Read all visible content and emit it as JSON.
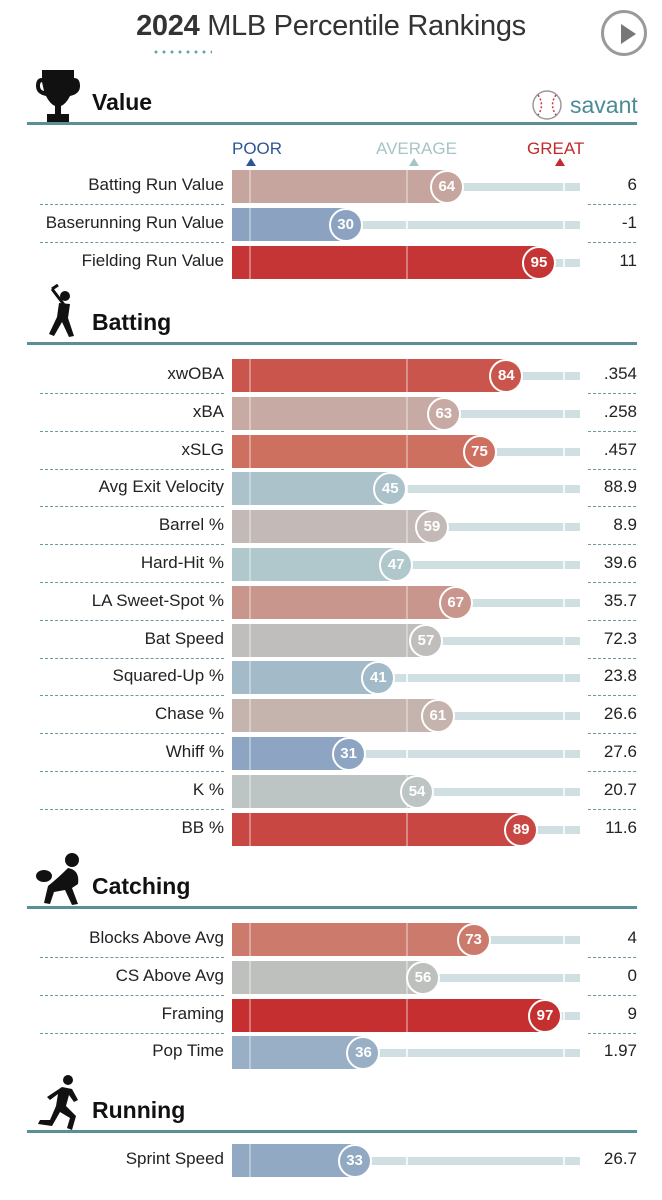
{
  "header": {
    "year": "2024",
    "title_rest": "MLB Percentile Rankings",
    "play_icon": "play-icon"
  },
  "brand": {
    "text": "savant",
    "icon": "baseball-icon",
    "color": "#4a8b95"
  },
  "scale": {
    "poor": "POOR",
    "average": "AVERAGE",
    "great": "GREAT",
    "colors": {
      "poor": "#2f5596",
      "average": "#a8c4c6",
      "great": "#c22a2a"
    }
  },
  "chart_data": {
    "type": "bar",
    "orientation": "horizontal",
    "xlim": [
      0,
      100
    ],
    "sections": [
      {
        "title": "Value",
        "icon": "trophy-icon",
        "metrics": [
          {
            "label": "Batting Run Value",
            "percentile": 64,
            "value": "6"
          },
          {
            "label": "Baserunning Run Value",
            "percentile": 30,
            "value": "-1"
          },
          {
            "label": "Fielding Run Value",
            "percentile": 95,
            "value": "11"
          }
        ]
      },
      {
        "title": "Batting",
        "icon": "batter-icon",
        "metrics": [
          {
            "label": "xwOBA",
            "percentile": 84,
            "value": ".354"
          },
          {
            "label": "xBA",
            "percentile": 63,
            "value": ".258"
          },
          {
            "label": "xSLG",
            "percentile": 75,
            "value": ".457"
          },
          {
            "label": "Avg Exit Velocity",
            "percentile": 45,
            "value": "88.9"
          },
          {
            "label": "Barrel %",
            "percentile": 59,
            "value": "8.9"
          },
          {
            "label": "Hard-Hit %",
            "percentile": 47,
            "value": "39.6"
          },
          {
            "label": "LA Sweet-Spot %",
            "percentile": 67,
            "value": "35.7"
          },
          {
            "label": "Bat Speed",
            "percentile": 57,
            "value": "72.3"
          },
          {
            "label": "Squared-Up %",
            "percentile": 41,
            "value": "23.8"
          },
          {
            "label": "Chase %",
            "percentile": 61,
            "value": "26.6"
          },
          {
            "label": "Whiff %",
            "percentile": 31,
            "value": "27.6"
          },
          {
            "label": "K %",
            "percentile": 54,
            "value": "20.7"
          },
          {
            "label": "BB %",
            "percentile": 89,
            "value": "11.6"
          }
        ]
      },
      {
        "title": "Catching",
        "icon": "catcher-icon",
        "metrics": [
          {
            "label": "Blocks Above Avg",
            "percentile": 73,
            "value": "4"
          },
          {
            "label": "CS Above Avg",
            "percentile": 56,
            "value": "0"
          },
          {
            "label": "Framing",
            "percentile": 97,
            "value": "9"
          },
          {
            "label": "Pop Time",
            "percentile": 36,
            "value": "1.97"
          }
        ]
      },
      {
        "title": "Running",
        "icon": "runner-icon",
        "metrics": [
          {
            "label": "Sprint Speed",
            "percentile": 33,
            "value": "26.7"
          }
        ]
      }
    ]
  }
}
